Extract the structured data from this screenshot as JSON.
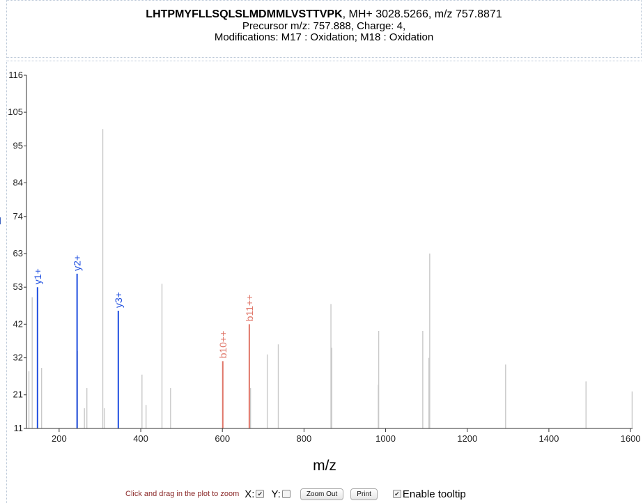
{
  "header": {
    "peptide": "LHTPMYFLLSQLSLMDMMLVSTTVPK",
    "mass_info": ", MH+ 3028.5266, m/z 757.8871",
    "precursor_line": "Precursor m/z: 757.888, Charge: 4,",
    "modifications_line": "Modifications: M17 : Oxidation; M18 : Oxidation"
  },
  "controls": {
    "hint": "Click and drag in the plot to zoom",
    "x_label": "X:",
    "x_checked": true,
    "y_label": "Y:",
    "y_checked": false,
    "zoom_out_label": "Zoom Out",
    "print_label": "Print",
    "tooltip_label": "Enable tooltip",
    "tooltip_checked": true
  },
  "colors": {
    "y_ion": "#1f4fe0",
    "b_ion": "#e0776a",
    "unmatched": "#c9c9c9",
    "axis": "#333333"
  },
  "chart_data": {
    "type": "bar",
    "xlabel": "m/z",
    "ylabel": "",
    "xlim": [
      120,
      1605
    ],
    "ylim": [
      11,
      116
    ],
    "xticks": [
      200,
      400,
      600,
      800,
      1000,
      1200,
      1400,
      1600
    ],
    "yticks": [
      11,
      21,
      32,
      42,
      53,
      63,
      74,
      84,
      95,
      105,
      116
    ],
    "series": [
      {
        "name": "unmatched",
        "points": [
          {
            "x": 126,
            "y": 28
          },
          {
            "x": 134,
            "y": 50
          },
          {
            "x": 157,
            "y": 29
          },
          {
            "x": 245,
            "y": 34
          },
          {
            "x": 262,
            "y": 17
          },
          {
            "x": 268,
            "y": 23
          },
          {
            "x": 307,
            "y": 100
          },
          {
            "x": 311,
            "y": 17
          },
          {
            "x": 403,
            "y": 27
          },
          {
            "x": 413,
            "y": 18
          },
          {
            "x": 452,
            "y": 54
          },
          {
            "x": 473,
            "y": 23
          },
          {
            "x": 669,
            "y": 23
          },
          {
            "x": 710,
            "y": 33
          },
          {
            "x": 737,
            "y": 36
          },
          {
            "x": 866,
            "y": 48
          },
          {
            "x": 868,
            "y": 35
          },
          {
            "x": 982,
            "y": 24
          },
          {
            "x": 983,
            "y": 40
          },
          {
            "x": 1091,
            "y": 40
          },
          {
            "x": 1106,
            "y": 32
          },
          {
            "x": 1108,
            "y": 63
          },
          {
            "x": 1294,
            "y": 30
          },
          {
            "x": 1491,
            "y": 25
          },
          {
            "x": 1604,
            "y": 22
          }
        ]
      },
      {
        "name": "y-ions",
        "points": [
          {
            "x": 147,
            "y": 53,
            "label": "y1+"
          },
          {
            "x": 244,
            "y": 57,
            "label": "y2+"
          },
          {
            "x": 345,
            "y": 46,
            "label": "y3+"
          }
        ]
      },
      {
        "name": "b-ions",
        "points": [
          {
            "x": 601,
            "y": 31,
            "label": "b10++"
          },
          {
            "x": 666,
            "y": 42,
            "label": "b11++"
          }
        ]
      }
    ]
  }
}
